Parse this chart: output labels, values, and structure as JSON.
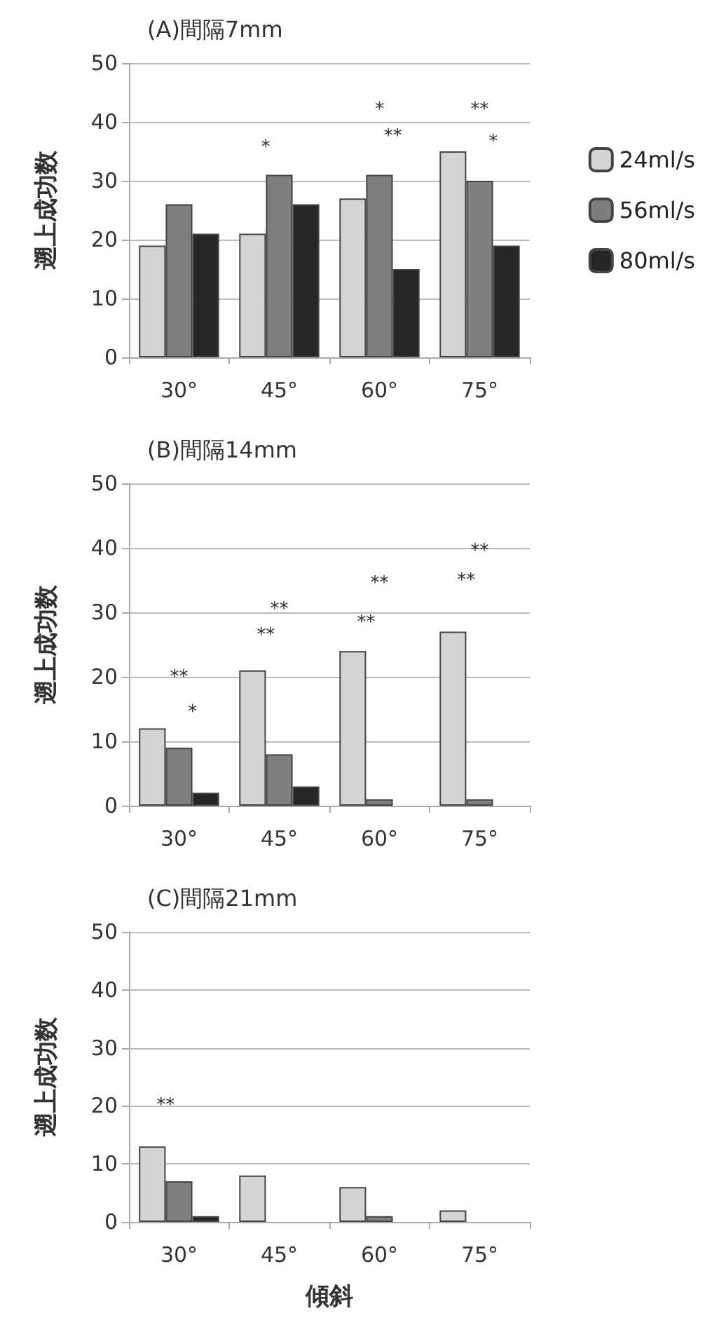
{
  "chart_data": [
    {
      "type": "bar",
      "title": "(A)間隔7mm",
      "ylabel": "遡上成功数",
      "categories": [
        "30°",
        "45°",
        "60°",
        "75°"
      ],
      "ylim": [
        0,
        50
      ],
      "yticks": [
        0,
        10,
        20,
        30,
        40,
        50
      ],
      "grid": "y",
      "legend": "right",
      "series": [
        {
          "name": "24ml/s",
          "color": "#d4d4d4",
          "values": [
            19,
            21,
            27,
            35
          ]
        },
        {
          "name": "56ml/s",
          "color": "#7f7f7f",
          "values": [
            26,
            31,
            31,
            30
          ]
        },
        {
          "name": "80ml/s",
          "color": "#262626",
          "values": [
            21,
            26,
            15,
            19
          ]
        }
      ],
      "annotations": [
        "*",
        "*",
        "**",
        "**",
        "*"
      ]
    },
    {
      "type": "bar",
      "title": "(B)間隔14mm",
      "ylabel": "遡上成功数",
      "categories": [
        "30°",
        "45°",
        "60°",
        "75°"
      ],
      "ylim": [
        0,
        50
      ],
      "yticks": [
        0,
        10,
        20,
        30,
        40,
        50
      ],
      "grid": "y",
      "series": [
        {
          "color": "#d4d4d4",
          "values": [
            12,
            21,
            24,
            27
          ]
        },
        {
          "color": "#7f7f7f",
          "values": [
            9,
            8,
            1,
            1
          ]
        },
        {
          "color": "#262626",
          "values": [
            2,
            3,
            0,
            0
          ]
        }
      ],
      "annotations": [
        "**",
        "*",
        "**",
        "**",
        "**",
        "**",
        "**",
        "**"
      ]
    },
    {
      "type": "bar",
      "title": "(C)間隔21mm",
      "ylabel": "遡上成功数",
      "xlabel": "傾斜",
      "categories": [
        "30°",
        "45°",
        "60°",
        "75°"
      ],
      "ylim": [
        0,
        50
      ],
      "yticks": [
        0,
        10,
        20,
        30,
        40,
        50
      ],
      "grid": "y",
      "series": [
        {
          "color": "#d4d4d4",
          "values": [
            13,
            8,
            6,
            2
          ]
        },
        {
          "color": "#7f7f7f",
          "values": [
            7,
            0,
            1,
            0
          ]
        },
        {
          "color": "#262626",
          "values": [
            1,
            0,
            0,
            0
          ]
        }
      ],
      "annotations": [
        "**"
      ]
    }
  ]
}
